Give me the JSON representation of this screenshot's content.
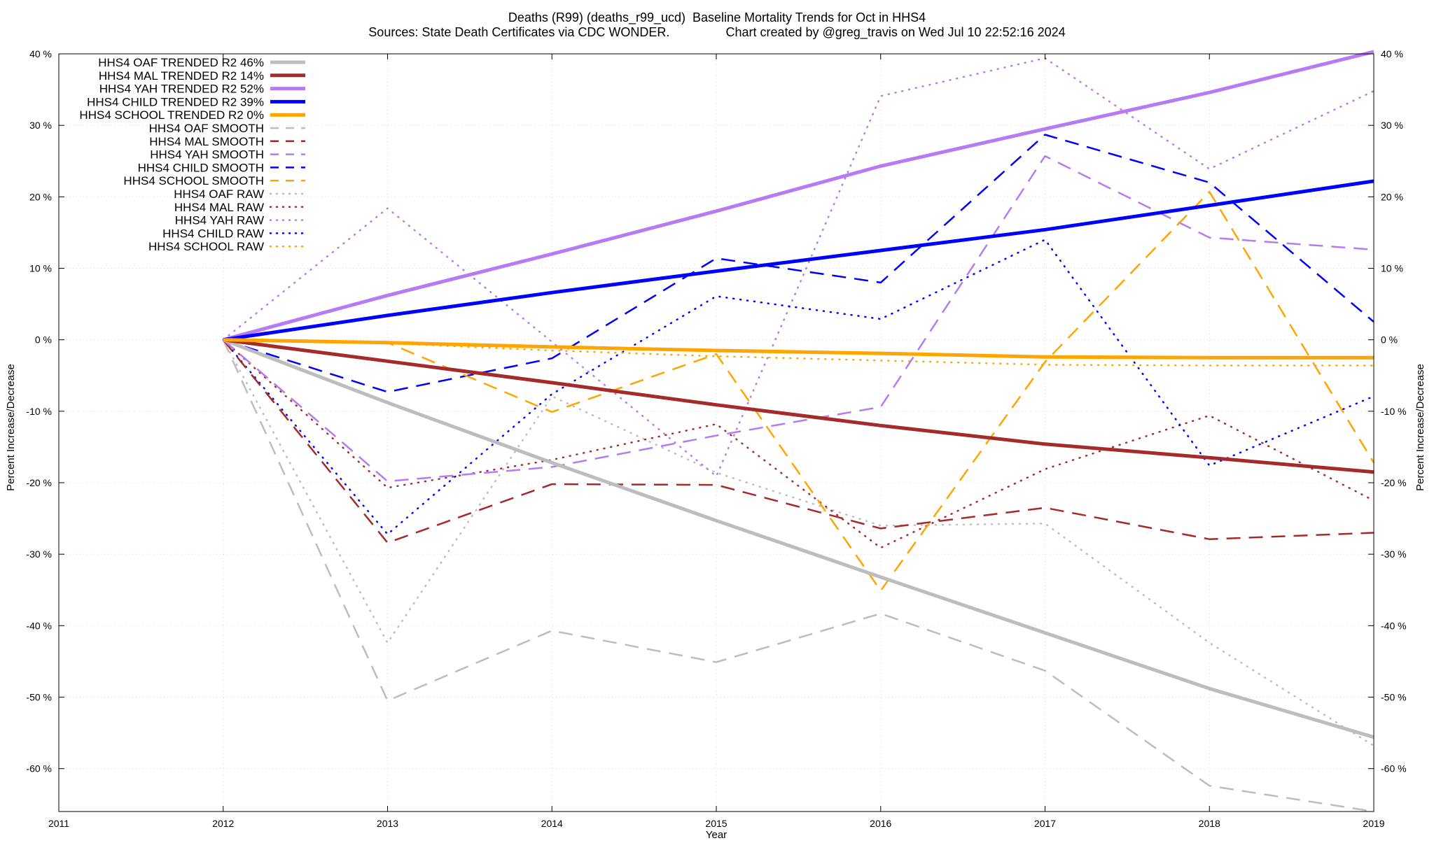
{
  "title_line1": "Deaths (R99) (deaths_r99_ucd)  Baseline Mortality Trends for Oct in HHS4",
  "title_line2": "Sources: State Death Certificates via CDC WONDER.                Chart created by @greg_travis on Wed Jul 10 22:52:16 2024",
  "chart_data": {
    "type": "line",
    "xlabel": "Year",
    "ylabel": "Percent Increase/Decrease",
    "y2label": "Percent Increase/Decrease",
    "xlim": [
      2011,
      2019
    ],
    "ylim": [
      -66,
      40
    ],
    "x_ticks": [
      2011,
      2012,
      2013,
      2014,
      2015,
      2016,
      2017,
      2018,
      2019
    ],
    "x_tick_labels": [
      "2011",
      "2012",
      "2013",
      "2014",
      "2015",
      "2016",
      "2017",
      "2018",
      "2019"
    ],
    "y_ticks": [
      40,
      30,
      20,
      10,
      0,
      -10,
      -20,
      -30,
      -40,
      -50,
      -60
    ],
    "y_tick_labels": [
      "40 %",
      "30 %",
      "20 %",
      "10 %",
      "0 %",
      "-10 %",
      "-20 %",
      "-30 %",
      "-40 %",
      "-50 %",
      "-60 %"
    ],
    "grid": true,
    "legend_position": "top-left",
    "series": [
      {
        "name": "HHS4 OAF TRENDED R2  46%",
        "style": "trend",
        "color": "#bdbdbd",
        "x": [
          2012,
          2013,
          2014,
          2015,
          2016,
          2017,
          2018,
          2019
        ],
        "values": [
          0,
          -8.8,
          -17.2,
          -25.3,
          -33.2,
          -41.0,
          -48.8,
          -55.6
        ]
      },
      {
        "name": "HHS4 MAL TRENDED R2  14%",
        "style": "trend",
        "color": "#a52a2a",
        "x": [
          2012,
          2013,
          2014,
          2015,
          2016,
          2017,
          2018,
          2019
        ],
        "values": [
          0,
          -3.0,
          -6.0,
          -9.1,
          -12.0,
          -14.6,
          -16.5,
          -18.5
        ]
      },
      {
        "name": "HHS4 YAH TRENDED R2  52%",
        "style": "trend",
        "color": "#b57bf2",
        "x": [
          2012,
          2013,
          2014,
          2015,
          2016,
          2017,
          2018,
          2019
        ],
        "values": [
          0,
          6.2,
          12.0,
          18.0,
          24.3,
          29.5,
          34.6,
          40.3
        ]
      },
      {
        "name": "HHS4 CHILD TRENDED R2  39%",
        "style": "trend",
        "color": "#0000ff",
        "x": [
          2012,
          2013,
          2014,
          2015,
          2016,
          2017,
          2018,
          2019
        ],
        "values": [
          0,
          3.4,
          6.6,
          9.6,
          12.5,
          15.4,
          18.8,
          22.2
        ]
      },
      {
        "name": "HHS4 SCHOOL TRENDED R2   0%",
        "style": "trend",
        "color": "#ffa500",
        "x": [
          2012,
          2013,
          2014,
          2015,
          2016,
          2017,
          2018,
          2019
        ],
        "values": [
          0,
          -0.4,
          -1.0,
          -1.5,
          -1.9,
          -2.4,
          -2.5,
          -2.5
        ]
      },
      {
        "name": "HHS4 OAF SMOOTH",
        "style": "smooth",
        "color": "#bdbdbd",
        "x": [
          2012,
          2013,
          2014,
          2015,
          2016,
          2017,
          2018,
          2019
        ],
        "values": [
          0,
          -50.5,
          -40.7,
          -45.1,
          -38.3,
          -46.3,
          -62.4,
          -66.0
        ]
      },
      {
        "name": "HHS4 MAL SMOOTH",
        "style": "smooth",
        "color": "#a52a2a",
        "x": [
          2012,
          2013,
          2014,
          2015,
          2016,
          2017,
          2018,
          2019
        ],
        "values": [
          0,
          -28.4,
          -20.2,
          -20.3,
          -26.4,
          -23.5,
          -27.9,
          -27.0
        ]
      },
      {
        "name": "HHS4 YAH SMOOTH",
        "style": "smooth",
        "color": "#b57bf2",
        "x": [
          2012,
          2013,
          2014,
          2015,
          2016,
          2017,
          2018,
          2019
        ],
        "values": [
          0,
          -19.8,
          -17.8,
          -13.4,
          -9.4,
          25.7,
          14.3,
          12.6
        ]
      },
      {
        "name": "HHS4 CHILD SMOOTH",
        "style": "smooth",
        "color": "#0000ff",
        "x": [
          2012,
          2013,
          2014,
          2015,
          2016,
          2017,
          2018,
          2019
        ],
        "values": [
          0,
          -7.3,
          -2.6,
          11.4,
          8.0,
          28.7,
          22.0,
          2.5
        ]
      },
      {
        "name": "HHS4 SCHOOL SMOOTH",
        "style": "smooth",
        "color": "#ffa500",
        "x": [
          2012,
          2013,
          2014,
          2015,
          2016,
          2017,
          2018,
          2019
        ],
        "values": [
          0,
          -0.4,
          -10.1,
          -2.0,
          -35.1,
          -3.1,
          20.7,
          -17.2
        ]
      },
      {
        "name": "HHS4 OAF RAW",
        "style": "raw",
        "color": "#bdbdbd",
        "x": [
          2012,
          2013,
          2014,
          2015,
          2016,
          2017,
          2018,
          2019
        ],
        "values": [
          0,
          -42.4,
          -7.9,
          -18.6,
          -26.0,
          -25.7,
          -42.4,
          -56.8
        ]
      },
      {
        "name": "HHS4 MAL RAW",
        "style": "raw",
        "color": "#a52a2a",
        "x": [
          2012,
          2013,
          2014,
          2015,
          2016,
          2017,
          2018,
          2019
        ],
        "values": [
          0,
          -20.7,
          -16.8,
          -11.8,
          -29.1,
          -18.1,
          -10.6,
          -22.5
        ]
      },
      {
        "name": "HHS4 YAH RAW",
        "style": "raw",
        "color": "#b57bf2",
        "x": [
          2012,
          2013,
          2014,
          2015,
          2016,
          2017,
          2018,
          2019
        ],
        "values": [
          0,
          18.4,
          -0.3,
          -19.1,
          34.1,
          39.4,
          23.9,
          34.8
        ]
      },
      {
        "name": "HHS4 CHILD RAW",
        "style": "raw",
        "color": "#0000ff",
        "x": [
          2012,
          2013,
          2014,
          2015,
          2016,
          2017,
          2018,
          2019
        ],
        "values": [
          0,
          -27.2,
          -7.6,
          6.1,
          2.9,
          14.0,
          -17.6,
          -7.9
        ]
      },
      {
        "name": "HHS4 SCHOOL RAW",
        "style": "raw",
        "color": "#ffa500",
        "x": [
          2012,
          2013,
          2014,
          2015,
          2016,
          2017,
          2018,
          2019
        ],
        "values": [
          0,
          -0.5,
          -1.5,
          -2.3,
          -2.9,
          -3.5,
          -3.6,
          -3.6
        ]
      }
    ]
  }
}
